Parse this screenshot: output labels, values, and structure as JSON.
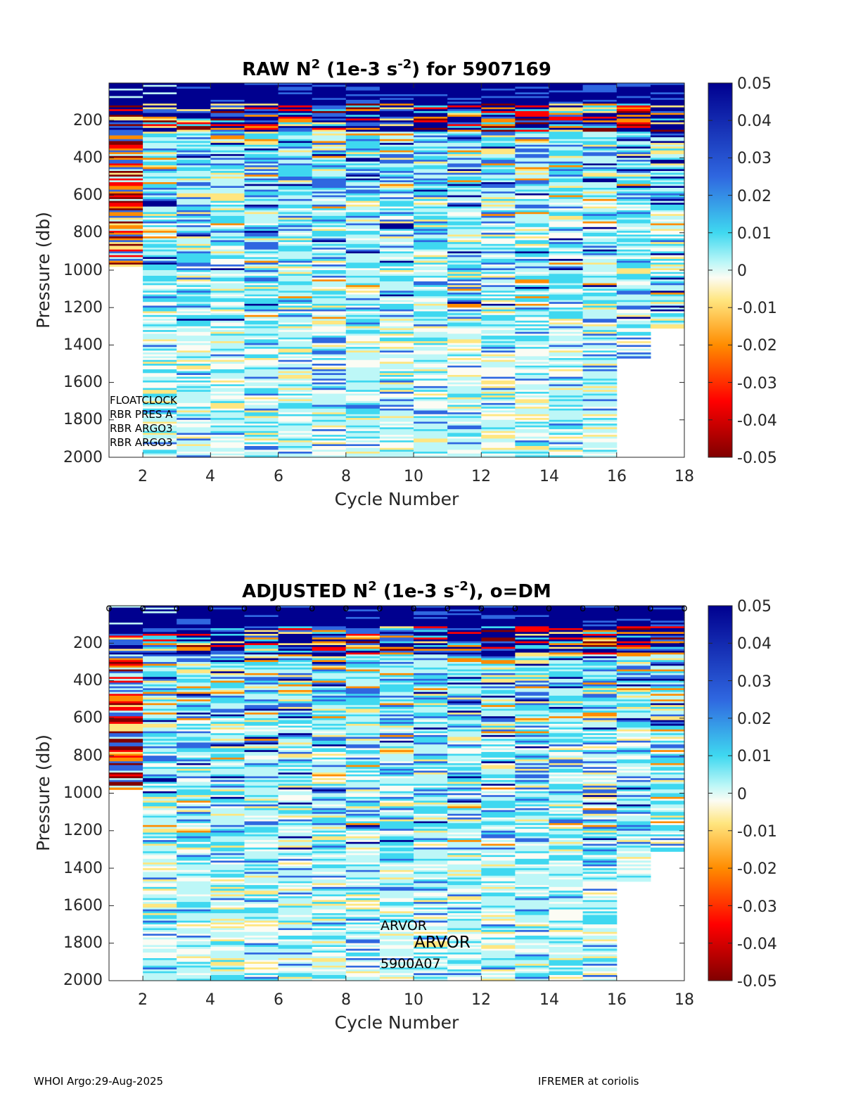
{
  "footer": {
    "left": "WHOI Argo:29-Aug-2025",
    "right": "IFREMER at coriolis"
  },
  "colorbar": {
    "ticks": [
      "0.05",
      "0.04",
      "0.03",
      "0.02",
      "0.01",
      "0",
      "-0.01",
      "-0.02",
      "-0.03",
      "-0.04",
      "-0.05"
    ],
    "range": [
      -0.05,
      0.05
    ],
    "colors": {
      "deep_red": "#800000",
      "red": "#ff0000",
      "orange": "#ff8c00",
      "yellow": "#ffe680",
      "white": "#fcfcf4",
      "cyan": "#bdf7f7",
      "sky": "#3fd8f0",
      "blue": "#2f67e0",
      "navy": "#00008f"
    }
  },
  "chart_data": [
    {
      "type": "heatmap",
      "title_pre": "RAW N",
      "title_sup1": "2",
      "title_mid": " (1e-3 s",
      "title_sup2": "-2",
      "title_post": ") for 5907169",
      "xlabel": "Cycle Number",
      "ylabel": "Pressure (db)",
      "xlim": [
        1,
        18
      ],
      "ylim": [
        2000,
        0
      ],
      "xticks": [
        "2",
        "4",
        "6",
        "8",
        "10",
        "12",
        "14",
        "16",
        "18"
      ],
      "yticks": [
        "200",
        "400",
        "600",
        "800",
        "1000",
        "1200",
        "1400",
        "1600",
        "1800",
        "2000"
      ],
      "cycles": [
        1,
        2,
        3,
        4,
        5,
        6,
        7,
        8,
        9,
        10,
        11,
        12,
        13,
        14,
        15,
        16,
        17
      ],
      "max_pressure_db": [
        980,
        2000,
        2000,
        2000,
        2000,
        2000,
        2000,
        2000,
        2000,
        2000,
        2000,
        2000,
        2000,
        2000,
        2000,
        1470,
        1310
      ],
      "dm_markers": false,
      "annotations": [
        "FLOATCLOCK",
        "RBR PRES A",
        "RBR ARGO3",
        "RBR ARGO3"
      ]
    },
    {
      "type": "heatmap",
      "title_pre": "ADJUSTED N",
      "title_sup1": "2",
      "title_mid": " (1e-3 s",
      "title_sup2": "-2",
      "title_post": "), o=DM",
      "xlabel": "Cycle Number",
      "ylabel": "Pressure (db)",
      "xlim": [
        1,
        18
      ],
      "ylim": [
        2000,
        0
      ],
      "xticks": [
        "2",
        "4",
        "6",
        "8",
        "10",
        "12",
        "14",
        "16",
        "18"
      ],
      "yticks": [
        "200",
        "400",
        "600",
        "800",
        "1000",
        "1200",
        "1400",
        "1600",
        "1800",
        "2000"
      ],
      "cycles": [
        1,
        2,
        3,
        4,
        5,
        6,
        7,
        8,
        9,
        10,
        11,
        12,
        13,
        14,
        15,
        16,
        17
      ],
      "max_pressure_db": [
        980,
        2000,
        2000,
        2000,
        2000,
        2000,
        2000,
        2000,
        2000,
        2000,
        2000,
        2000,
        2000,
        2000,
        2000,
        1470,
        1310
      ],
      "dm_markers": true,
      "dm_marker_symbol": "o",
      "dm_cycles": [
        1,
        2,
        3,
        4,
        5,
        6,
        7,
        8,
        9,
        10,
        11,
        12,
        13,
        14,
        15,
        16,
        17,
        18
      ],
      "annotations": [
        "ARVOR",
        "ARVOR",
        "5900A07"
      ]
    }
  ]
}
